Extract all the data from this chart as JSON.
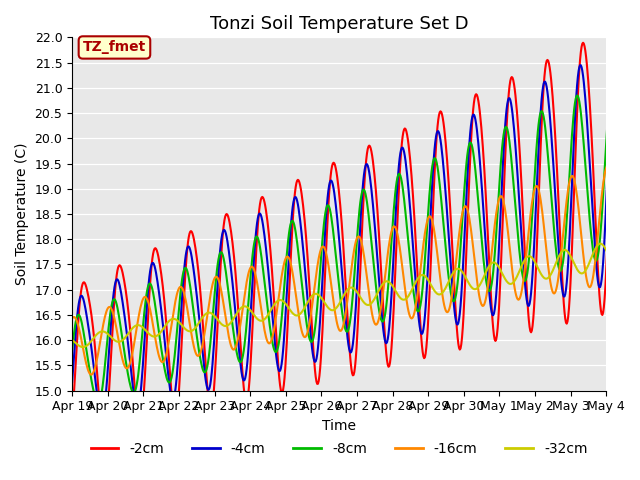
{
  "title": "Tonzi Soil Temperature Set D",
  "ylabel": "Soil Temperature (C)",
  "xlabel": "Time",
  "ylim": [
    15.0,
    22.0
  ],
  "yticks": [
    15.0,
    15.5,
    16.0,
    16.5,
    17.0,
    17.5,
    18.0,
    18.5,
    19.0,
    19.5,
    20.0,
    20.5,
    21.0,
    21.5,
    22.0
  ],
  "xtick_labels": [
    "Apr 19",
    "Apr 20",
    "Apr 21",
    "Apr 22",
    "Apr 23",
    "Apr 24",
    "Apr 25",
    "Apr 26",
    "Apr 27",
    "Apr 28",
    "Apr 29",
    "Apr 30",
    "May 1",
    "May 2",
    "May 3",
    "May 4"
  ],
  "line_colors": [
    "#ff0000",
    "#0000cc",
    "#00bb00",
    "#ff8800",
    "#cccc00"
  ],
  "line_labels": [
    "-2cm",
    "-4cm",
    "-8cm",
    "-16cm",
    "-32cm"
  ],
  "line_widths": [
    1.5,
    1.5,
    1.5,
    1.5,
    1.5
  ],
  "bg_color": "#e8e8e8",
  "fig_bg_color": "#ffffff",
  "legend_label": "TZ_fmet",
  "legend_bg": "#ffffcc",
  "legend_border": "#aa0000",
  "title_fontsize": 13,
  "axis_fontsize": 10,
  "tick_fontsize": 9
}
